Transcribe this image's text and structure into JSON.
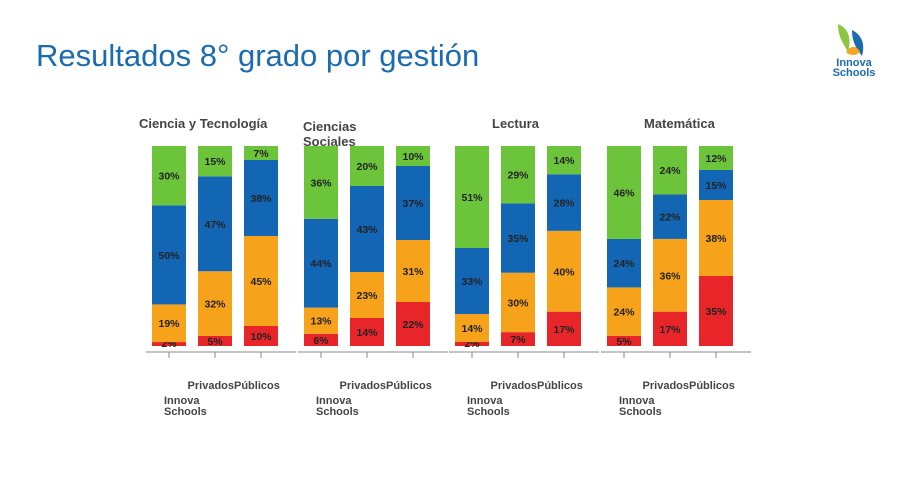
{
  "slide": {
    "title": "Resultados 8° grado por gestión"
  },
  "logo": {
    "line1": "Innova",
    "line2": "Schools",
    "colors": {
      "green": "#8cc63f",
      "blue": "#1a6bb0",
      "orange": "#f5a623"
    }
  },
  "chart_data": {
    "type": "bar",
    "stacked": true,
    "normalized": true,
    "ylim": [
      0,
      100
    ],
    "level_colors": [
      "#e8262a",
      "#f7a21b",
      "#1366b4",
      "#6cc43a"
    ],
    "panels": [
      {
        "title": "Ciencia y Tecnología",
        "categories": [
          "Innova Schools",
          "Privados",
          "Públicos"
        ],
        "stacks": [
          {
            "values": [
              2,
              19,
              50,
              30
            ],
            "labels": [
              "2%",
              "19%",
              "50%",
              "30%"
            ]
          },
          {
            "values": [
              5,
              32,
              47,
              15
            ],
            "labels": [
              "5%",
              "32%",
              "47%",
              "15%"
            ]
          },
          {
            "values": [
              10,
              45,
              38,
              7
            ],
            "labels": [
              "10%",
              "45%",
              "38%",
              "7%"
            ]
          }
        ]
      },
      {
        "title": "Ciencias Sociales",
        "categories": [
          "Innova Schools",
          "Privados",
          "Públicos"
        ],
        "stacks": [
          {
            "values": [
              6,
              13,
              44,
              36
            ],
            "labels": [
              "6%",
              "13%",
              "44%",
              "36%"
            ]
          },
          {
            "values": [
              14,
              23,
              43,
              20
            ],
            "labels": [
              "14%",
              "23%",
              "43%",
              "20%"
            ]
          },
          {
            "values": [
              22,
              31,
              37,
              10
            ],
            "labels": [
              "22%",
              "31%",
              "37%",
              "10%"
            ]
          }
        ]
      },
      {
        "title": "Lectura",
        "categories": [
          "Innova Schools",
          "Privados",
          "Públicos"
        ],
        "stacks": [
          {
            "values": [
              2,
              14,
              33,
              51
            ],
            "labels": [
              "2%",
              "14%",
              "33%",
              "51%"
            ]
          },
          {
            "values": [
              7,
              30,
              35,
              29
            ],
            "labels": [
              "7%",
              "30%",
              "35%",
              "29%"
            ]
          },
          {
            "values": [
              17,
              40,
              28,
              14
            ],
            "labels": [
              "17%",
              "40%",
              "28%",
              "14%"
            ]
          }
        ]
      },
      {
        "title": "Matemática",
        "categories": [
          "Innova Schools",
          "Privados",
          "Públicos"
        ],
        "stacks": [
          {
            "values": [
              5,
              24,
              24,
              46
            ],
            "labels": [
              "5%",
              "24%",
              "24%",
              "46%"
            ]
          },
          {
            "values": [
              17,
              36,
              22,
              24
            ],
            "labels": [
              "17%",
              "36%",
              "22%",
              "24%"
            ]
          },
          {
            "values": [
              35,
              38,
              15,
              12
            ],
            "labels": [
              "35%",
              "38%",
              "15%",
              "12%"
            ]
          }
        ]
      }
    ]
  }
}
